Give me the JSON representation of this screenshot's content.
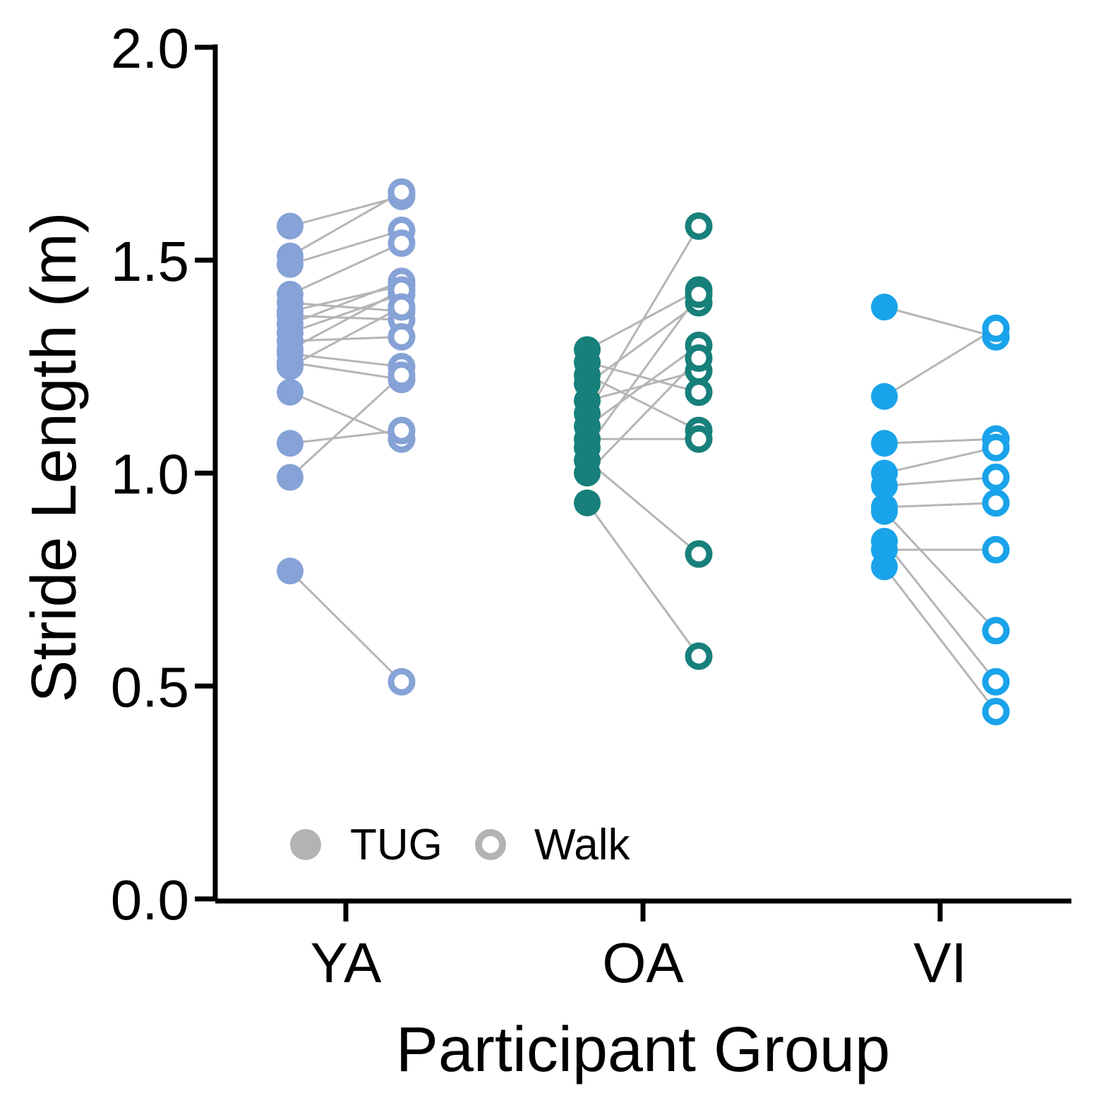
{
  "chart_data": {
    "type": "scatter",
    "xlabel": "Participant Group",
    "ylabel": "Stride Length (m)",
    "ylim": [
      0,
      2.0
    ],
    "yticks": [
      "0.0",
      "0.5",
      "1.0",
      "1.5",
      "2.0"
    ],
    "ytick_values": [
      0,
      0.5,
      1.0,
      1.5,
      2.0
    ],
    "categories": [
      "YA",
      "OA",
      "VI"
    ],
    "grid": false,
    "legend": {
      "placement": "bottom-left",
      "items": [
        {
          "label": "TUG",
          "marker": "filled"
        },
        {
          "label": "Walk",
          "marker": "open"
        }
      ]
    },
    "groups": [
      {
        "name": "YA",
        "color": "#86a2d6",
        "pairs": [
          [
            1.58,
            1.65
          ],
          [
            1.51,
            1.66
          ],
          [
            1.49,
            1.57
          ],
          [
            1.42,
            1.54
          ],
          [
            1.4,
            1.38
          ],
          [
            1.38,
            1.44
          ],
          [
            1.37,
            1.36
          ],
          [
            1.35,
            1.45
          ],
          [
            1.33,
            1.42
          ],
          [
            1.31,
            1.32
          ],
          [
            1.29,
            1.43
          ],
          [
            1.28,
            1.25
          ],
          [
            1.26,
            1.22
          ],
          [
            1.25,
            1.39
          ],
          [
            1.19,
            1.08
          ],
          [
            1.07,
            1.1
          ],
          [
            0.99,
            1.23
          ],
          [
            0.77,
            0.51
          ]
        ]
      },
      {
        "name": "OA",
        "color": "#17807a",
        "pairs": [
          [
            1.29,
            1.43
          ],
          [
            1.26,
            1.19
          ],
          [
            1.23,
            1.1
          ],
          [
            1.21,
            1.4
          ],
          [
            1.17,
            1.24
          ],
          [
            1.14,
            1.58
          ],
          [
            1.11,
            1.3
          ],
          [
            1.08,
            1.08
          ],
          [
            1.06,
            1.42
          ],
          [
            1.03,
            0.81
          ],
          [
            1.0,
            1.27
          ],
          [
            0.93,
            0.57
          ]
        ]
      },
      {
        "name": "VI",
        "color": "#19a3ea",
        "pairs": [
          [
            1.39,
            1.32
          ],
          [
            1.18,
            1.34
          ],
          [
            1.07,
            1.08
          ],
          [
            1.0,
            1.06
          ],
          [
            0.97,
            0.99
          ],
          [
            0.92,
            0.93
          ],
          [
            0.91,
            0.63
          ],
          [
            0.84,
            0.51
          ],
          [
            0.82,
            0.82
          ],
          [
            0.78,
            0.44
          ]
        ]
      }
    ]
  }
}
